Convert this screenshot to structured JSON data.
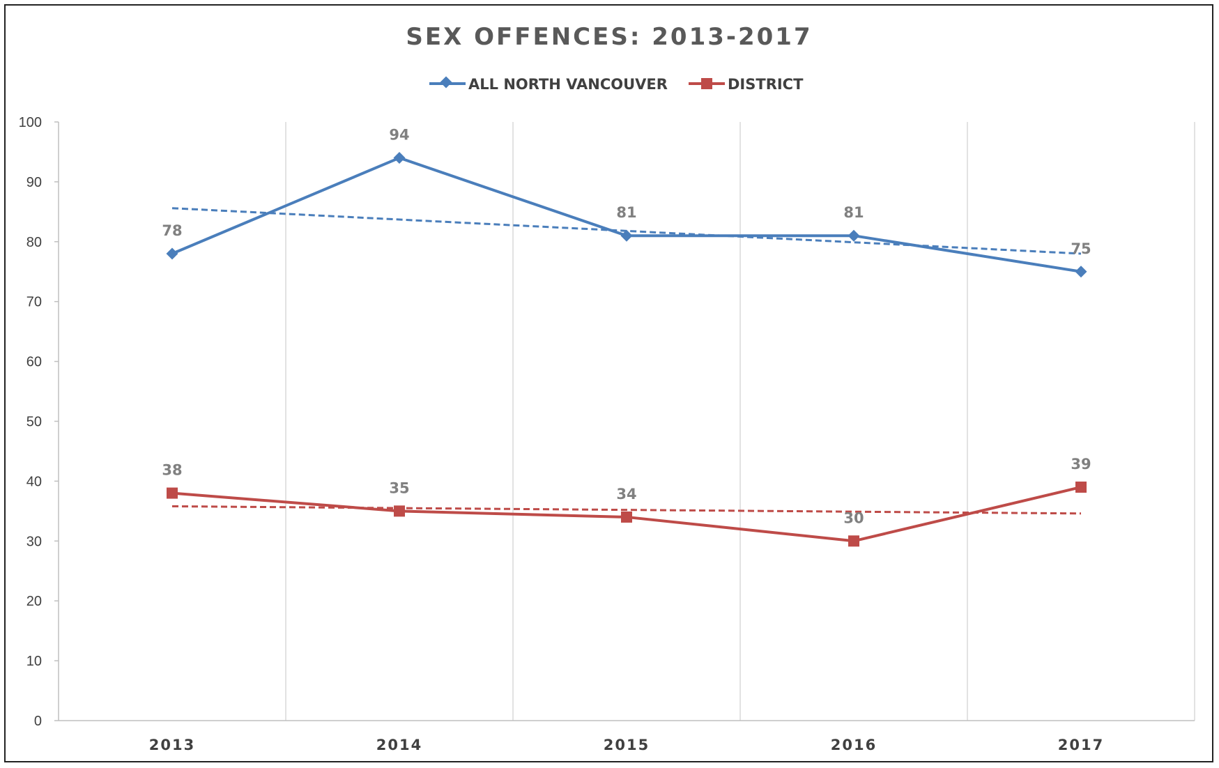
{
  "chart_data": {
    "type": "line",
    "title": "SEX OFFENCES: 2013-2017",
    "categories": [
      "2013",
      "2014",
      "2015",
      "2016",
      "2017"
    ],
    "ylim": [
      0,
      100
    ],
    "yticks": [
      "0",
      "10",
      "20",
      "30",
      "40",
      "50",
      "60",
      "70",
      "80",
      "90",
      "100"
    ],
    "grid": "vertical",
    "legend_position": "top",
    "trendlines": "linear, dashed",
    "series": [
      {
        "name": "ALL NORTH VANCOUVER",
        "values": [
          78,
          94,
          81,
          81,
          75
        ],
        "labels": [
          "78",
          "94",
          "81",
          "81",
          "75"
        ],
        "color": "#4a7ebb",
        "marker": "diamond"
      },
      {
        "name": "DISTRICT",
        "values": [
          38,
          35,
          34,
          30,
          39
        ],
        "labels": [
          "38",
          "35",
          "34",
          "30",
          "39"
        ],
        "color": "#be4b48",
        "marker": "square"
      }
    ]
  }
}
